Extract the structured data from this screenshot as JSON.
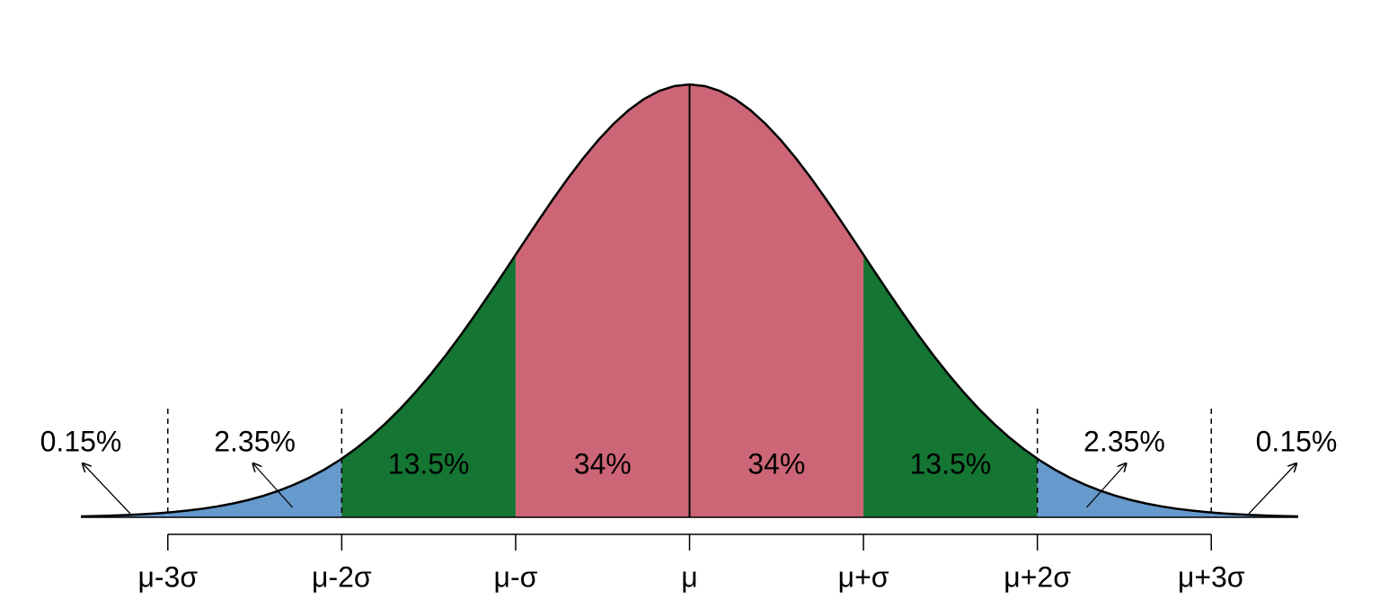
{
  "chart_data": {
    "type": "normal",
    "xlim": [
      -3.5,
      3.5
    ],
    "xticks": [
      {
        "value": -3,
        "label": "μ-3σ"
      },
      {
        "value": -2,
        "label": "μ-2σ"
      },
      {
        "value": -1,
        "label": "μ-σ"
      },
      {
        "value": 0,
        "label": "μ"
      },
      {
        "value": 1,
        "label": "μ+σ"
      },
      {
        "value": 2,
        "label": "μ+2σ"
      },
      {
        "value": 3,
        "label": "μ+3σ"
      }
    ],
    "values": [
      0.15,
      2.35,
      13.5,
      34,
      34,
      13.5,
      2.35,
      0.15
    ],
    "value_labels": [
      "0.15%",
      "2.35%",
      "13.5%",
      "34%",
      "34%",
      "13.5%",
      "2.35%",
      "0.15%"
    ],
    "colors": [
      "#6699cc",
      "#6699cc",
      "#157532",
      "#cc6677",
      "#cc6677",
      "#157532",
      "#6699cc",
      "#6699cc"
    ]
  }
}
